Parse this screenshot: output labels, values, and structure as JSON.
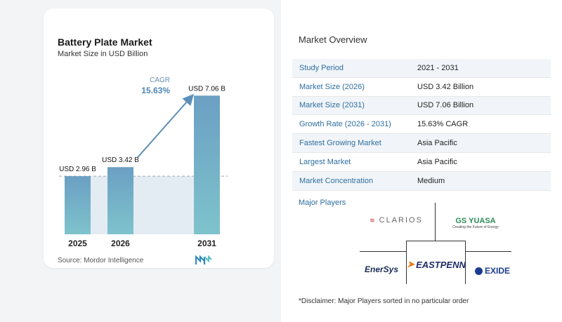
{
  "chart": {
    "title": "Battery Plate Market",
    "subtitle": "Market Size in USD Billion",
    "source": "Source:  Mordor Intelligence",
    "cagr_label": "CAGR",
    "cagr_value": "15.63%"
  },
  "chart_data": {
    "type": "bar",
    "title": "Battery Plate Market",
    "subtitle": "Market Size in USD Billion",
    "categories": [
      "2025",
      "2026",
      "2031"
    ],
    "values": [
      2.96,
      3.42,
      7.06
    ],
    "data_labels": [
      "USD 2.96 B",
      "USD 3.42 B",
      "USD 7.06 B"
    ],
    "ylim": [
      0,
      7.5
    ],
    "grid": false,
    "annotation": {
      "label": "CAGR",
      "value": "15.63%"
    },
    "colors": {
      "bar_top": "#6b9fc3",
      "bar_bottom": "#7ec3cc",
      "shade": "#e4ecf3",
      "arrow": "#5b8fb9"
    }
  },
  "overview": {
    "title": "Market Overview",
    "rows": [
      {
        "label": "Study Period",
        "value": "2021 - 2031"
      },
      {
        "label": "Market Size (2026)",
        "value": "USD 3.42 Billion"
      },
      {
        "label": "Market Size (2031)",
        "value": "USD 7.06 Billion"
      },
      {
        "label": "Growth Rate (2026 - 2031)",
        "value": "15.63% CAGR"
      },
      {
        "label": "Fastest Growing Market",
        "value": "Asia Pacific"
      },
      {
        "label": "Largest Market",
        "value": "Asia Pacific"
      },
      {
        "label": "Market Concentration",
        "value": "Medium"
      }
    ]
  },
  "players": {
    "title": "Major Players",
    "logos": {
      "clarios": "CLARIOS",
      "gsyuasa": "GS YUASA",
      "gsyuasa_tagline": "Creating the Future of Energy",
      "enersys": "EnerSys",
      "eastpenn": "EASTPENN",
      "exide": "EXIDE"
    }
  },
  "disclaimer": "*Disclaimer: Major Players sorted in no particular order"
}
